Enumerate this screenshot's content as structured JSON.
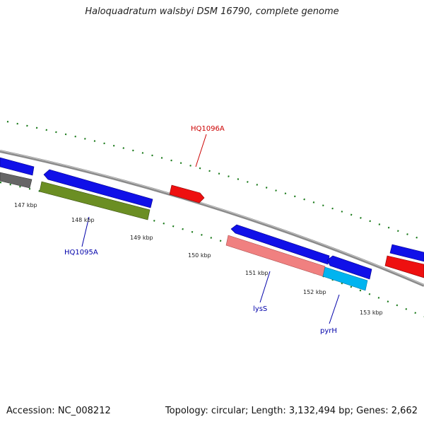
{
  "title": "Haloquadratum walsbyi DSM 16790, complete genome",
  "footer": {
    "accession_text": "Accession: NC_008212",
    "summary_text": "Topology: circular; Length: 3,132,494 bp; Genes: 2,662"
  },
  "scale_labels": [
    "147 kbp",
    "148 kbp",
    "149 kbp",
    "150 kbp",
    "151 kbp",
    "152 kbp",
    "153 kbp"
  ],
  "gene_labels": [
    {
      "id": "hq1096a",
      "text": "HQ1096A",
      "color": "#cc0000"
    },
    {
      "id": "hq1095a",
      "text": "HQ1095A",
      "color": "#0000aa"
    },
    {
      "id": "lyss",
      "text": "lysS",
      "color": "#0000aa"
    },
    {
      "id": "pyrh",
      "text": "pyrH",
      "color": "#0000aa"
    }
  ],
  "colors": {
    "backbone": "#8a8a8a",
    "tick_marks": "#1a7a1a",
    "blue_gene": "#1010e8",
    "red_gene": "#ee1010",
    "pink_gene": "#f08080",
    "olive_gene": "#6b8e23",
    "gray_gene": "#666666",
    "cyan_gene": "#00b4f0"
  }
}
